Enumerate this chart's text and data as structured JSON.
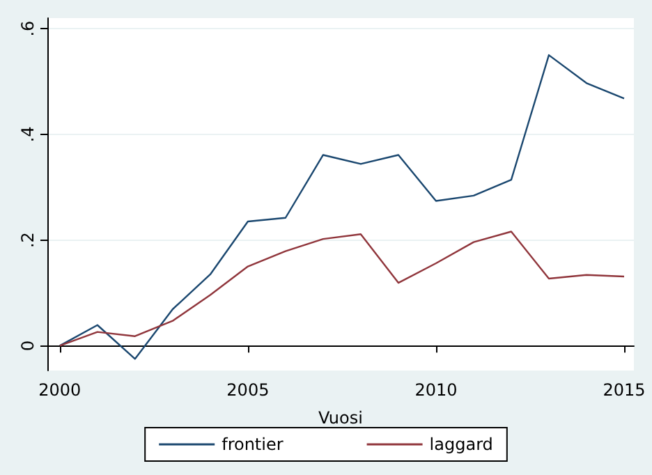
{
  "chart_data": {
    "type": "line",
    "xlabel": "Vuosi",
    "x": [
      2000,
      2001,
      2002,
      2003,
      2004,
      2005,
      2006,
      2007,
      2008,
      2009,
      2010,
      2011,
      2012,
      2013,
      2014,
      2015
    ],
    "series": [
      {
        "name": "frontier",
        "color": "#1a476f",
        "values": [
          0,
          0.039,
          -0.025,
          0.069,
          0.135,
          0.235,
          0.242,
          0.361,
          0.344,
          0.361,
          0.274,
          0.284,
          0.314,
          0.55,
          0.497,
          0.468
        ]
      },
      {
        "name": "laggard",
        "color": "#90353b",
        "values": [
          0,
          0.026,
          0.018,
          0.047,
          0.096,
          0.15,
          0.179,
          0.202,
          0.211,
          0.119,
          0.156,
          0.196,
          0.216,
          0.127,
          0.134,
          0.131
        ]
      }
    ],
    "xlim": [
      1999.67,
      2015.26
    ],
    "xticks": [
      2000,
      2005,
      2010,
      2015
    ],
    "ylim": [
      -0.047,
      0.62
    ],
    "yticks": [
      {
        "value": 0,
        "label": "0"
      },
      {
        "value": 0.2,
        "label": ".2"
      },
      {
        "value": 0.4,
        "label": ".4"
      },
      {
        "value": 0.6,
        "label": ".6"
      }
    ],
    "grid": "y",
    "legend": "bottom",
    "marker": "none",
    "line_style": "solid"
  }
}
